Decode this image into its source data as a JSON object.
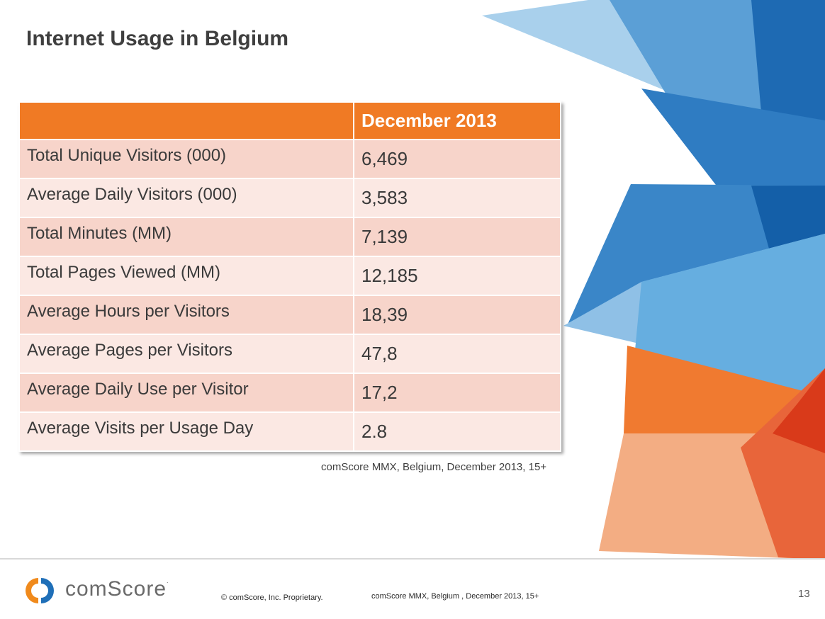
{
  "slide": {
    "title": "Internet Usage in Belgium",
    "page_number": "13"
  },
  "table": {
    "header": {
      "label": "",
      "value": "December 2013"
    },
    "rows": [
      {
        "label": "Total Unique Visitors (000)",
        "value": "6,469"
      },
      {
        "label": "Average Daily Visitors (000)",
        "value": "3,583"
      },
      {
        "label": "Total Minutes (MM)",
        "value": "7,139"
      },
      {
        "label": "Total Pages Viewed (MM)",
        "value": "12,185"
      },
      {
        "label": "Average Hours per Visitors",
        "value": "18,39"
      },
      {
        "label": "Average Pages per Visitors",
        "value": "47,8"
      },
      {
        "label": "Average Daily Use per Visitor",
        "value": "17,2"
      },
      {
        "label": "Average Visits per Usage Day",
        "value": "2.8"
      }
    ]
  },
  "source_note": "comScore MMX, Belgium, December 2013, 15+",
  "footer": {
    "brand": "comScore",
    "trademark": ".",
    "copyright": "© comScore, Inc.    Proprietary.",
    "source": "comScore MMX, Belgium , December 2013, 15+"
  },
  "colors": {
    "header_orange": "#f07a24",
    "row_odd": "#f7d4ca",
    "row_even": "#fbe8e3",
    "blue_dark": "#1f6fb8",
    "blue_light": "#9cc8e8"
  }
}
